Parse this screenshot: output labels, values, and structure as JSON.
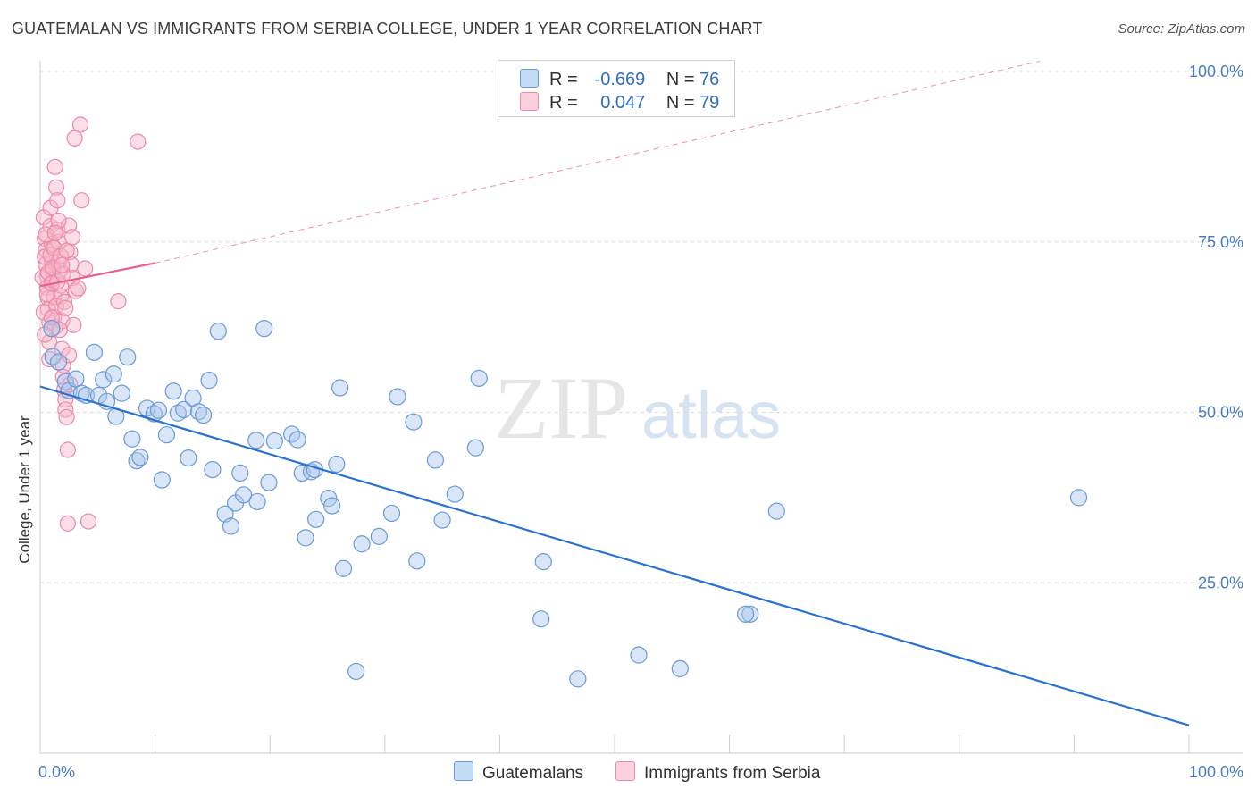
{
  "header": {
    "title": "GUATEMALAN VS IMMIGRANTS FROM SERBIA COLLEGE, UNDER 1 YEAR CORRELATION CHART",
    "source": "Source: ZipAtlas.com"
  },
  "watermark": {
    "zip": "ZIP",
    "atlas": "atlas"
  },
  "colors": {
    "blue_fill": "#aac8ee",
    "blue_stroke": "#6a9ad8",
    "blue_line": "#2a72d0",
    "pink_fill": "#f7b6c9",
    "pink_stroke": "#ec8aa8",
    "pink_line": "#e8608a",
    "grid": "#dcdcdc",
    "axis_label": "#4a7cc4"
  },
  "stats_legend": {
    "rows": [
      {
        "r_label": "R =",
        "r_value": "-0.669",
        "n_label": "N =",
        "n_value": "76",
        "color": "#aac8ee"
      },
      {
        "r_label": "R =",
        "r_value": "0.047",
        "n_label": "N =",
        "n_value": "79",
        "color": "#f7b6c9"
      }
    ]
  },
  "series_legend": [
    {
      "name": "Guatemalans",
      "color": "#aac8ee"
    },
    {
      "name": "Immigrants from Serbia",
      "color": "#f7b6c9"
    }
  ],
  "chart_data": {
    "type": "scatter",
    "title": "GUATEMALAN VS IMMIGRANTS FROM SERBIA COLLEGE, UNDER 1 YEAR CORRELATION CHART",
    "xlabel": "",
    "ylabel": "College, Under 1 year",
    "xlim": [
      0,
      100
    ],
    "ylim": [
      0,
      100
    ],
    "x_tick_labels": [
      "0.0%",
      "100.0%"
    ],
    "y_ticks": [
      25,
      50,
      75,
      100
    ],
    "y_tick_labels": [
      "25.0%",
      "50.0%",
      "75.0%",
      "100.0%"
    ],
    "grid": true,
    "series": [
      {
        "name": "Guatemalans",
        "r": -0.669,
        "n": 76,
        "trend": {
          "x0": 0,
          "y0": 53.8,
          "x1": 100,
          "y1": 4.1
        },
        "points": [
          [
            1,
            62.3
          ],
          [
            1.1,
            58.2
          ],
          [
            1.6,
            57.4
          ],
          [
            2.2,
            54.5
          ],
          [
            2.5,
            53.2
          ],
          [
            3.1,
            54.9
          ],
          [
            3.6,
            52.8
          ],
          [
            4,
            52.5
          ],
          [
            4.7,
            58.8
          ],
          [
            5.1,
            52.5
          ],
          [
            5.5,
            54.8
          ],
          [
            5.8,
            51.6
          ],
          [
            6.4,
            55.6
          ],
          [
            6.6,
            49.4
          ],
          [
            7.1,
            52.8
          ],
          [
            7.6,
            58.1
          ],
          [
            8,
            46.1
          ],
          [
            8.4,
            42.9
          ],
          [
            8.7,
            43.4
          ],
          [
            9.3,
            50.6
          ],
          [
            9.9,
            49.8
          ],
          [
            10.3,
            50.3
          ],
          [
            10.6,
            40.1
          ],
          [
            11,
            46.7
          ],
          [
            11.6,
            53.1
          ],
          [
            12,
            49.9
          ],
          [
            12.5,
            50.4
          ],
          [
            12.9,
            43.3
          ],
          [
            13.3,
            52.1
          ],
          [
            13.8,
            50.1
          ],
          [
            14.2,
            49.6
          ],
          [
            14.7,
            54.7
          ],
          [
            15,
            41.6
          ],
          [
            15.5,
            61.9
          ],
          [
            16.1,
            35.1
          ],
          [
            16.6,
            33.3
          ],
          [
            17,
            36.7
          ],
          [
            17.4,
            41.1
          ],
          [
            17.7,
            37.9
          ],
          [
            18.9,
            36.9
          ],
          [
            18.8,
            45.9
          ],
          [
            19.5,
            62.3
          ],
          [
            19.9,
            39.7
          ],
          [
            20.4,
            45.8
          ],
          [
            21.9,
            46.8
          ],
          [
            22.4,
            46.0
          ],
          [
            22.8,
            41.1
          ],
          [
            23.1,
            31.6
          ],
          [
            23.6,
            41.3
          ],
          [
            23.9,
            41.6
          ],
          [
            24,
            34.3
          ],
          [
            25.1,
            37.4
          ],
          [
            25.4,
            36.3
          ],
          [
            25.8,
            42.4
          ],
          [
            26.1,
            53.6
          ],
          [
            26.4,
            27.1
          ],
          [
            27.5,
            12.0
          ],
          [
            28,
            30.7
          ],
          [
            29.5,
            31.8
          ],
          [
            30.6,
            35.2
          ],
          [
            31.1,
            52.3
          ],
          [
            32.5,
            48.6
          ],
          [
            32.8,
            28.2
          ],
          [
            34.4,
            43.0
          ],
          [
            35,
            34.2
          ],
          [
            36.1,
            38.0
          ],
          [
            37.9,
            44.8
          ],
          [
            38.2,
            55.0
          ],
          [
            43.6,
            19.7
          ],
          [
            43.8,
            28.1
          ],
          [
            46.8,
            10.9
          ],
          [
            52.1,
            14.4
          ],
          [
            55.7,
            12.4
          ],
          [
            61.8,
            20.4
          ],
          [
            61.4,
            20.4
          ],
          [
            64.1,
            35.5
          ],
          [
            90.4,
            37.5
          ]
        ]
      },
      {
        "name": "Immigrants from Serbia",
        "r": 0.047,
        "n": 79,
        "trend": {
          "x0": 0,
          "y0": 68.5,
          "x1": 10,
          "y1": 71.9,
          "x2": 100,
          "y2": 102.5
        },
        "points": [
          [
            0.3,
            78.6
          ],
          [
            0.4,
            75.5
          ],
          [
            0.5,
            73.8
          ],
          [
            0.5,
            71.7
          ],
          [
            0.6,
            70.1
          ],
          [
            0.6,
            68.3
          ],
          [
            0.7,
            66.7
          ],
          [
            0.7,
            65.1
          ],
          [
            0.8,
            63.2
          ],
          [
            0.8,
            60.3
          ],
          [
            0.9,
            80.0
          ],
          [
            0.9,
            77.3
          ],
          [
            1.0,
            74.7
          ],
          [
            1.0,
            72.4
          ],
          [
            1.1,
            70.8
          ],
          [
            1.1,
            69.5
          ],
          [
            1.2,
            66.9
          ],
          [
            1.2,
            64.0
          ],
          [
            1.3,
            62.5
          ],
          [
            1.3,
            86.0
          ],
          [
            1.4,
            83.0
          ],
          [
            1.5,
            81.1
          ],
          [
            1.5,
            76.8
          ],
          [
            1.6,
            75.0
          ],
          [
            1.6,
            72.1
          ],
          [
            1.7,
            70.9
          ],
          [
            1.8,
            68.6
          ],
          [
            1.8,
            67.0
          ],
          [
            1.9,
            63.4
          ],
          [
            1.9,
            59.3
          ],
          [
            2.0,
            56.9
          ],
          [
            2.0,
            55.2
          ],
          [
            2.1,
            53.3
          ],
          [
            2.2,
            51.9
          ],
          [
            2.2,
            50.4
          ],
          [
            2.3,
            49.3
          ],
          [
            2.4,
            44.5
          ],
          [
            2.4,
            33.7
          ],
          [
            2.5,
            77.4
          ],
          [
            2.6,
            73.5
          ],
          [
            2.7,
            71.7
          ],
          [
            2.8,
            69.7
          ],
          [
            2.9,
            62.8
          ],
          [
            3.0,
            90.2
          ],
          [
            3.1,
            67.8
          ],
          [
            3.3,
            68.2
          ],
          [
            3.5,
            92.2
          ],
          [
            3.6,
            81.1
          ],
          [
            3.9,
            71.1
          ],
          [
            4.2,
            34.0
          ],
          [
            6.8,
            66.3
          ],
          [
            8.5,
            89.7
          ],
          [
            0.2,
            69.8
          ],
          [
            0.3,
            64.7
          ],
          [
            0.4,
            72.8
          ],
          [
            0.5,
            76.1
          ],
          [
            0.6,
            67.3
          ],
          [
            0.7,
            70.5
          ],
          [
            0.9,
            73.1
          ],
          [
            1.0,
            68.9
          ],
          [
            1.1,
            71.2
          ],
          [
            1.2,
            74.1
          ],
          [
            1.4,
            65.6
          ],
          [
            1.5,
            69.2
          ],
          [
            1.6,
            78.1
          ],
          [
            1.7,
            62.1
          ],
          [
            1.8,
            72.9
          ],
          [
            2.0,
            70.3
          ],
          [
            2.1,
            66.2
          ],
          [
            2.3,
            73.7
          ],
          [
            2.5,
            58.4
          ],
          [
            2.6,
            54.1
          ],
          [
            2.8,
            75.7
          ],
          [
            0.4,
            61.4
          ],
          [
            0.8,
            57.8
          ],
          [
            1.3,
            76.3
          ],
          [
            1.9,
            71.6
          ],
          [
            2.2,
            65.3
          ],
          [
            1.0,
            63.9
          ]
        ]
      }
    ]
  }
}
